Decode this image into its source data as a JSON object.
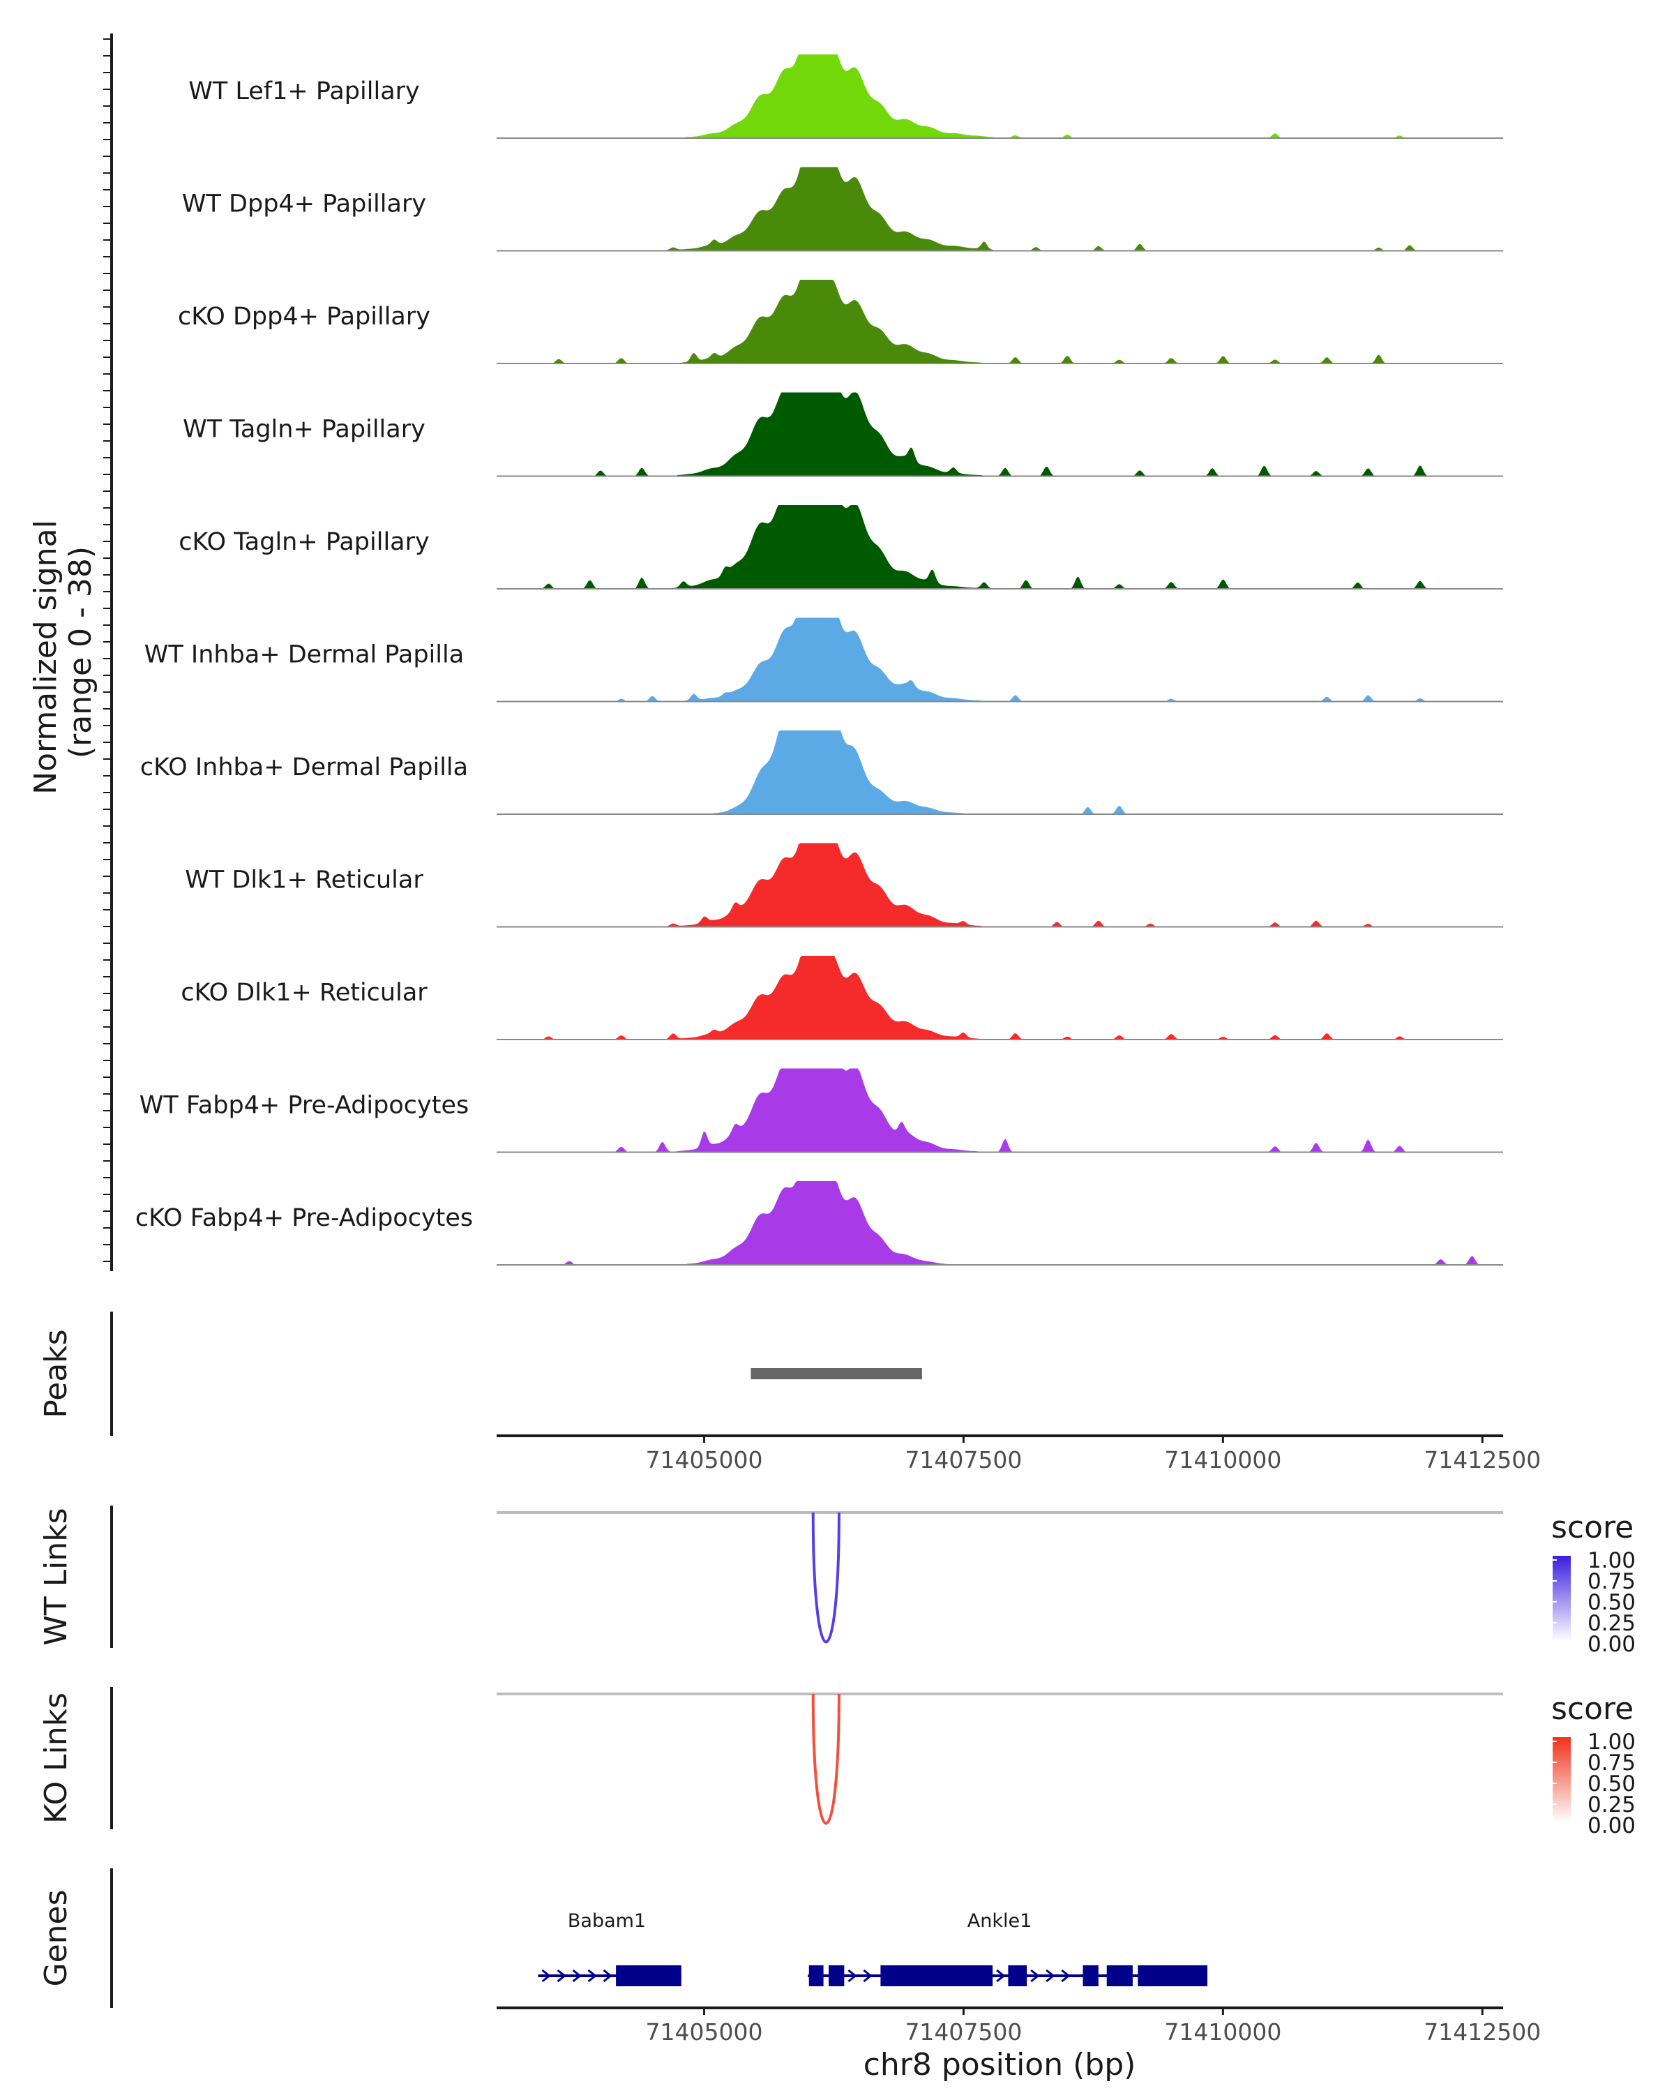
{
  "chart_data": {
    "type": "genome-coverage",
    "region": {
      "chrom": "chr8",
      "start": 71403000,
      "end": 71412700
    },
    "coverage": {
      "ylabel": "Normalized signal\n(range 0 - 38)",
      "ylabel_lines": [
        "Normalized signal",
        "(range 0 - 38)"
      ],
      "ylim": [
        0,
        38
      ],
      "tracks": [
        {
          "name": "WT Lef1+ Papillary",
          "color": "#72D80A"
        },
        {
          "name": "WT Dpp4+ Papillary",
          "color": "#4A8A0A"
        },
        {
          "name": "cKO Dpp4+ Papillary",
          "color": "#4A8A0A"
        },
        {
          "name": "WT Tagln+ Papillary",
          "color": "#005A00"
        },
        {
          "name": "cKO Tagln+ Papillary",
          "color": "#005A00"
        },
        {
          "name": "WT Inhba+ Dermal Papilla",
          "color": "#5BAAE6"
        },
        {
          "name": "cKO Inhba+ Dermal Papilla",
          "color": "#5BAAE6"
        },
        {
          "name": "WT Dlk1+ Reticular",
          "color": "#F52A2A"
        },
        {
          "name": "cKO Dlk1+ Reticular",
          "color": "#F52A2A"
        },
        {
          "name": "WT Fabp4+ Pre-Adipocytes",
          "color": "#A93AE8"
        },
        {
          "name": "cKO Fabp4+ Pre-Adipocytes",
          "color": "#A93AE8"
        }
      ]
    },
    "peaks": {
      "label": "Peaks",
      "color": "#666666",
      "regions": [
        [
          71405450,
          71407100
        ]
      ]
    },
    "x_axis": {
      "ticks": [
        71405000,
        71407500,
        71410000,
        71412500
      ],
      "tick_labels": [
        "71405000",
        "71407500",
        "71410000",
        "71412500"
      ],
      "title": "chr8 position (bp)"
    },
    "links": [
      {
        "label": "WT Links",
        "legend_title": "score",
        "legend_ticks": [
          "1.00",
          "0.75",
          "0.50",
          "0.25",
          "0.00"
        ],
        "color_high": "#3B1DE0",
        "color_low": "#FFFFFF",
        "arcs": [
          {
            "start": 71406050,
            "end": 71406300,
            "score": 0.85
          }
        ]
      },
      {
        "label": "KO Links",
        "legend_title": "score",
        "legend_ticks": [
          "1.00",
          "0.75",
          "0.50",
          "0.25",
          "0.00"
        ],
        "color_high": "#F0311A",
        "color_low": "#FFFFFF",
        "arcs": [
          {
            "start": 71406050,
            "end": 71406300,
            "score": 0.85
          }
        ]
      }
    ],
    "genes": {
      "label": "Genes",
      "color": "#00008B",
      "items": [
        {
          "name": "Babam1",
          "strand": "+",
          "start": 71403400,
          "end": 71404780,
          "exons": [
            [
              71404150,
              71404780
            ]
          ]
        },
        {
          "name": "Ankle1",
          "strand": "+",
          "start": 71406000,
          "end": 71409850,
          "exons": [
            [
              71406010,
              71406150
            ],
            [
              71406200,
              71406350
            ],
            [
              71406700,
              71407780
            ],
            [
              71407930,
              71408110
            ],
            [
              71408650,
              71408800
            ],
            [
              71408880,
              71409130
            ],
            [
              71409180,
              71409850
            ]
          ]
        }
      ]
    }
  }
}
